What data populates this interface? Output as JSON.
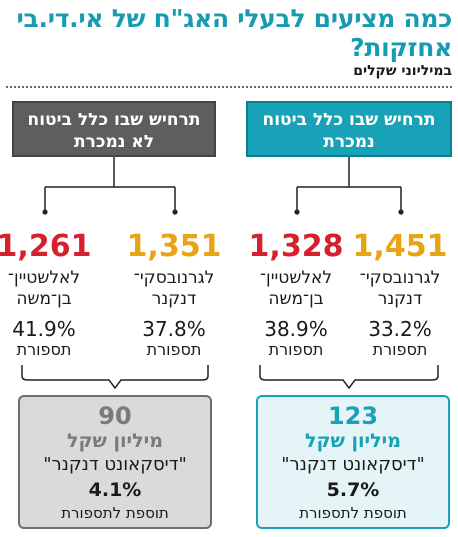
{
  "title": "כמה מציעים לבעלי האג\"ח של אי.די.בי אחזקות?",
  "subtitle": "במיליוני שקלים",
  "colors": {
    "teal": "#17a2b8",
    "gray": "#5e5e5e",
    "red": "#d6202e",
    "orange": "#e8a414"
  },
  "scenarios": [
    {
      "header_line1": "תרחיש שבו כלל ביטוח",
      "header_line2": "נמכרת",
      "offers": [
        {
          "amount": "1,451",
          "name_line1": "לגרנובסקי־",
          "name_line2": "דנקנר",
          "pct": "33.2%",
          "pct_label": "תספורת"
        },
        {
          "amount": "1,328",
          "name_line1": "לאלשטיין־",
          "name_line2": "בן־משה",
          "pct": "38.9%",
          "pct_label": "תספורת"
        }
      ],
      "gap": {
        "amount": "123",
        "unit": "מיליון שקל",
        "bank": "\"דיסקאונט דנקנר\"",
        "pct": "5.7%",
        "pct_label": "תוספת לתספורת"
      }
    },
    {
      "header_line1": "תרחיש שבו כלל ביטוח",
      "header_line2": "לא נמכרת",
      "offers": [
        {
          "amount": "1,351",
          "name_line1": "לגרנובסקי־",
          "name_line2": "דנקנר",
          "pct": "37.8%",
          "pct_label": "תספורת"
        },
        {
          "amount": "1,261",
          "name_line1": "לאלשטיין־",
          "name_line2": "בן־משה",
          "pct": "41.9%",
          "pct_label": "תספורת"
        }
      ],
      "gap": {
        "amount": "90",
        "unit": "מיליון שקל",
        "bank": "\"דיסקאונט דנקנר\"",
        "pct": "4.1%",
        "pct_label": "תוספת לתספורת"
      }
    }
  ]
}
